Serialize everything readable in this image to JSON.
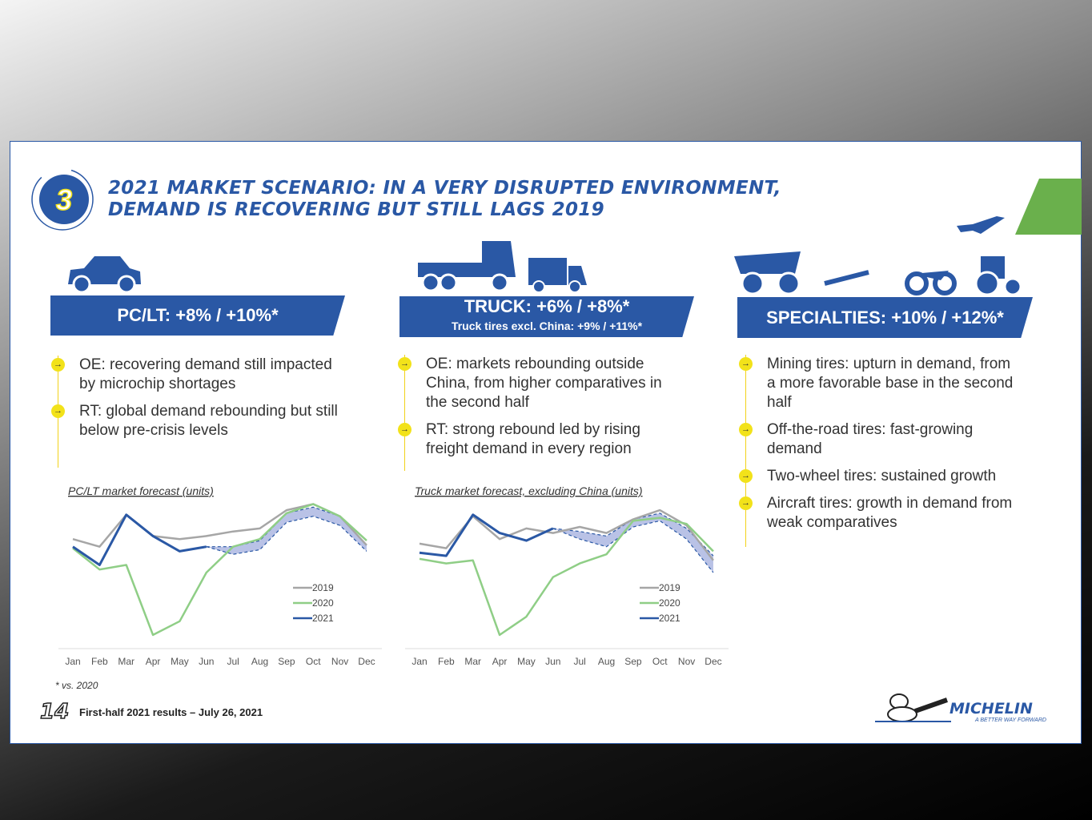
{
  "header": {
    "badge": "3",
    "title_lines": [
      "2021 MARKET SCENARIO: IN A VERY DISRUPTED ENVIRONMENT,",
      "DEMAND IS RECOVERING BUT STILL LAGS 2019"
    ]
  },
  "columns": [
    {
      "heading": "PC/LT: +8% / +10%*",
      "bullets": [
        "OE: recovering demand still impacted by microchip shortages",
        "RT: global demand rebounding but still below pre-crisis levels"
      ]
    },
    {
      "heading": "TRUCK: +6% / +8%*",
      "subheading": "Truck tires excl. China: +9% / +11%*",
      "bullets": [
        "OE: markets rebounding outside China, from higher comparatives in the second half",
        "RT: strong rebound led by rising freight demand in every region"
      ]
    },
    {
      "heading": "SPECIALTIES: +10% / +12%*",
      "bullets": [
        "Mining tires: upturn in demand, from a more favorable base in the second half",
        "Off-the-road tires: fast-growing demand",
        "Two-wheel tires: sustained growth",
        "Aircraft tires: growth in demand from weak comparatives"
      ]
    }
  ],
  "chart_data": [
    {
      "type": "line",
      "title": "PC/LT market forecast (units)",
      "categories": [
        "Jan",
        "Feb",
        "Mar",
        "Apr",
        "May",
        "Jun",
        "Jul",
        "Aug",
        "Sep",
        "Oct",
        "Nov",
        "Dec"
      ],
      "series": [
        {
          "name": "2019",
          "color": "#a6a6a6",
          "values": [
            72,
            67,
            88,
            74,
            72,
            74,
            77,
            79,
            91,
            95,
            87,
            68
          ]
        },
        {
          "name": "2020",
          "color": "#8fce86",
          "values": [
            66,
            52,
            55,
            9,
            18,
            50,
            67,
            72,
            89,
            95,
            87,
            71
          ]
        },
        {
          "name": "2021",
          "color": "#2a58a5",
          "values": [
            67,
            55,
            88,
            74,
            64,
            67,
            null,
            null,
            null,
            null,
            null,
            null
          ]
        }
      ],
      "forecast_band": {
        "color": "#b9c2e6",
        "upper": [
          null,
          null,
          null,
          null,
          null,
          67,
          67,
          71,
          89,
          93,
          87,
          68
        ],
        "lower": [
          null,
          null,
          null,
          null,
          null,
          67,
          62,
          65,
          83,
          87,
          81,
          64
        ]
      },
      "ylim": [
        0,
        100
      ]
    },
    {
      "type": "line",
      "title": "Truck market forecast, excluding China (units)",
      "categories": [
        "Jan",
        "Feb",
        "Mar",
        "Apr",
        "May",
        "Jun",
        "Jul",
        "Aug",
        "Sep",
        "Oct",
        "Nov",
        "Dec"
      ],
      "series": [
        {
          "name": "2019",
          "color": "#a6a6a6",
          "values": [
            69,
            66,
            87,
            72,
            79,
            76,
            80,
            76,
            85,
            91,
            81,
            58
          ]
        },
        {
          "name": "2020",
          "color": "#8fce86",
          "values": [
            59,
            56,
            58,
            9,
            21,
            47,
            56,
            62,
            84,
            86,
            82,
            64
          ]
        },
        {
          "name": "2021",
          "color": "#2a58a5",
          "values": [
            63,
            61,
            88,
            76,
            71,
            79,
            null,
            null,
            null,
            null,
            null,
            null
          ]
        }
      ],
      "forecast_band": {
        "color": "#b9c2e6",
        "upper": [
          null,
          null,
          null,
          null,
          null,
          79,
          77,
          74,
          85,
          89,
          79,
          61
        ],
        "lower": [
          null,
          null,
          null,
          null,
          null,
          79,
          72,
          67,
          80,
          84,
          72,
          50
        ]
      },
      "ylim": [
        0,
        100
      ]
    }
  ],
  "footer": {
    "note": "* vs. 2020",
    "page": "14",
    "text": "First-half 2021 results – July 26, 2021",
    "brand": "MICHELIN",
    "tagline": "A BETTER WAY FORWARD"
  }
}
